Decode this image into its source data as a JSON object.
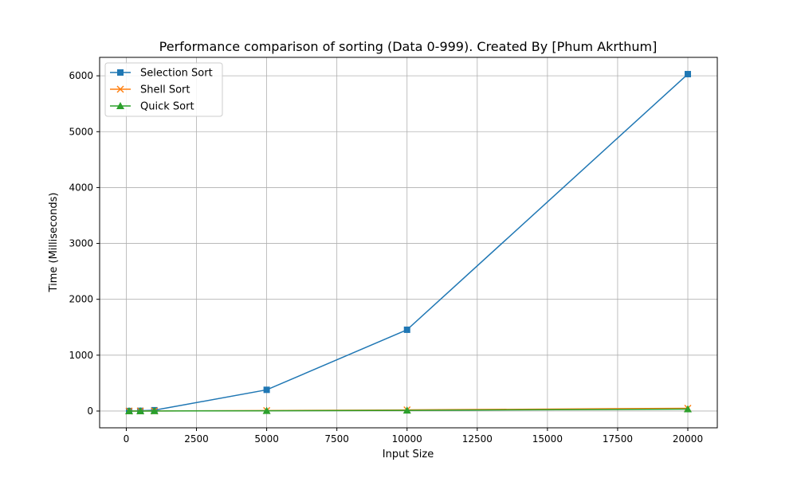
{
  "chart_data": {
    "type": "line",
    "title": "Performance comparison of sorting (Data 0-999). Created By [Phum Akrthum]",
    "xlabel": "Input Size",
    "ylabel": "Time (Milliseconds)",
    "x": [
      100,
      500,
      1000,
      5000,
      10000,
      20000
    ],
    "series": [
      {
        "name": "Selection Sort",
        "color": "#1f77b4",
        "marker": "square",
        "values": [
          1,
          4,
          15,
          380,
          1455,
          6030
        ]
      },
      {
        "name": "Shell Sort",
        "color": "#ff7f0e",
        "marker": "x",
        "values": [
          0,
          1,
          2,
          8,
          20,
          50
        ]
      },
      {
        "name": "Quick Sort",
        "color": "#2ca02c",
        "marker": "triangle",
        "values": [
          0,
          0,
          1,
          5,
          12,
          35
        ]
      }
    ],
    "xlim": [
      -950,
      21050
    ],
    "ylim": [
      -300,
      6330
    ],
    "xticks": [
      0,
      2500,
      5000,
      7500,
      10000,
      12500,
      15000,
      17500,
      20000
    ],
    "yticks": [
      0,
      1000,
      2000,
      3000,
      4000,
      5000,
      6000
    ],
    "grid": true,
    "legend_position": "upper-left"
  }
}
